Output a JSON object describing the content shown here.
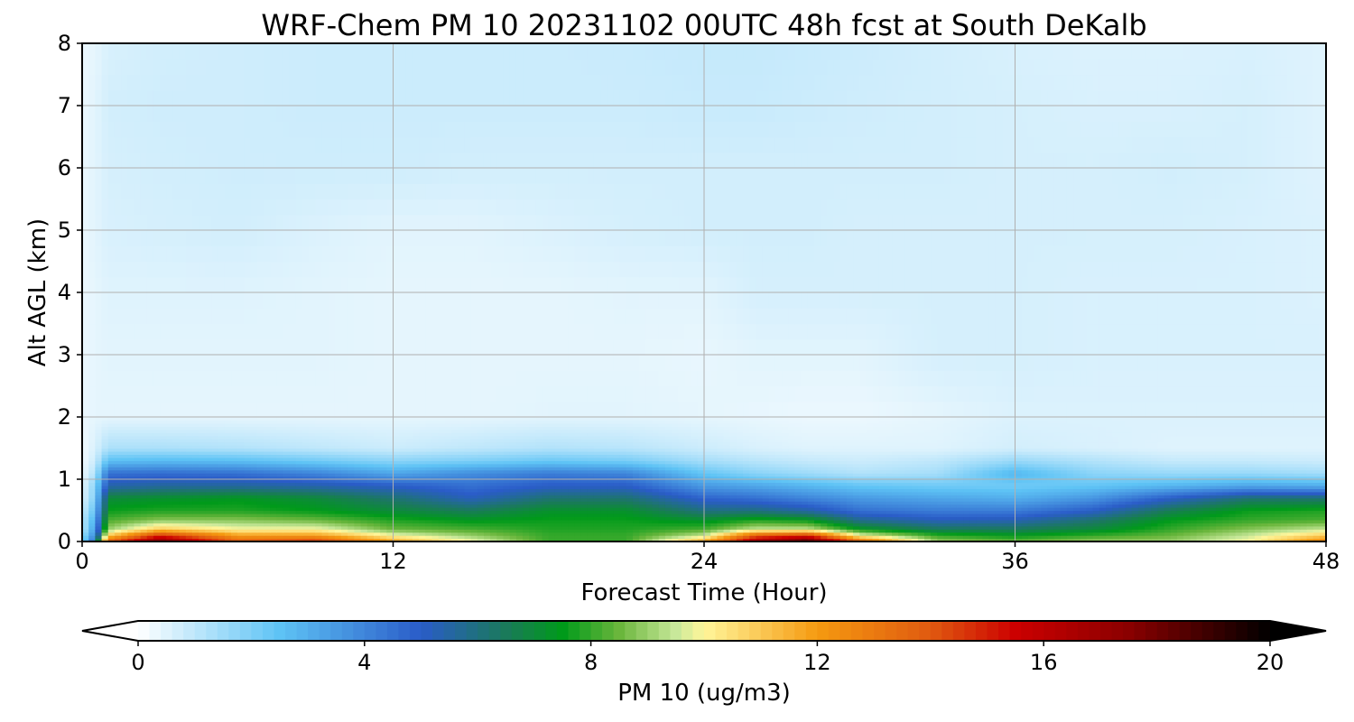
{
  "chart_data": {
    "type": "heatmap",
    "title": "WRF-Chem PM 10  20231102 00UTC 48h fcst at South DeKalb",
    "xlabel": "Forecast Time (Hour)",
    "ylabel": "Alt AGL (km)",
    "xlim": [
      0,
      48
    ],
    "ylim": [
      0,
      8
    ],
    "x_ticks": [
      0,
      12,
      24,
      36,
      48
    ],
    "y_ticks": [
      0,
      1,
      2,
      3,
      4,
      5,
      6,
      7,
      8
    ],
    "grid": true,
    "colorbar": {
      "label": "PM 10  (ug/m3)",
      "range": [
        0,
        20
      ],
      "ticks": [
        0,
        4,
        8,
        12,
        16,
        20
      ],
      "extend": "both",
      "orientation": "horizontal",
      "position": "bottom",
      "color_stops": [
        {
          "v": 0,
          "c": "#ffffff"
        },
        {
          "v": 2.5,
          "c": "#5ec3f5"
        },
        {
          "v": 5,
          "c": "#2a5cc8"
        },
        {
          "v": 6.5,
          "c": "#1a7a5a"
        },
        {
          "v": 7.5,
          "c": "#009a1a"
        },
        {
          "v": 8.5,
          "c": "#6ab63c"
        },
        {
          "v": 9.5,
          "c": "#c8e89a"
        },
        {
          "v": 10,
          "c": "#fff69a"
        },
        {
          "v": 12,
          "c": "#f59a10"
        },
        {
          "v": 14,
          "c": "#e05a10"
        },
        {
          "v": 15.5,
          "c": "#cc0000"
        },
        {
          "v": 17.5,
          "c": "#8a0000"
        },
        {
          "v": 20,
          "c": "#000000"
        }
      ]
    },
    "hours": [
      0,
      0.5,
      1,
      3,
      6,
      9,
      12,
      15,
      18,
      21,
      24,
      26,
      28,
      30,
      33,
      36,
      39,
      42,
      45,
      48
    ],
    "altitudes_km": [
      0,
      0.1,
      0.2,
      0.35,
      0.5,
      0.7,
      0.9,
      1.1,
      1.3,
      1.5,
      2,
      3,
      4,
      5,
      6,
      7,
      8
    ],
    "values": [
      [
        2,
        5,
        14,
        18,
        14,
        15,
        12,
        10,
        8,
        8,
        12,
        17,
        19,
        14,
        9,
        8.5,
        9,
        9,
        10,
        13
      ],
      [
        1.5,
        4,
        11,
        15,
        12,
        12,
        10,
        9,
        8,
        8,
        9.5,
        14,
        15,
        10,
        8,
        7.5,
        8,
        8.5,
        9.5,
        11
      ],
      [
        1,
        3.5,
        9,
        11,
        10,
        10,
        8.5,
        8.2,
        7.8,
        7.8,
        8.2,
        9.5,
        9.5,
        7.5,
        6.5,
        6.5,
        7,
        8,
        8.8,
        9.5
      ],
      [
        1,
        3,
        8.2,
        8.8,
        8.8,
        8.5,
        7.8,
        7.4,
        7.6,
        7.6,
        7.2,
        7.8,
        7.5,
        5.8,
        5.2,
        5.3,
        6.2,
        7.5,
        8,
        8.2
      ],
      [
        0.8,
        2.5,
        7.6,
        7.8,
        7.8,
        7.5,
        7,
        6.5,
        7.2,
        7.2,
        6,
        6,
        5.5,
        4.5,
        4.2,
        4.2,
        5,
        6.6,
        7.6,
        7.8
      ],
      [
        0.5,
        2,
        7,
        7.2,
        7.4,
        7,
        6.2,
        5.2,
        6.2,
        6.2,
        4.8,
        4.5,
        4,
        3.5,
        3.2,
        3,
        3.6,
        5,
        6.2,
        6.2
      ],
      [
        0.4,
        1.8,
        5.4,
        5.6,
        5.6,
        5.4,
        5,
        4.5,
        5,
        5,
        3.5,
        3.2,
        2.8,
        2.4,
        2.2,
        2.2,
        2.4,
        2.8,
        3.2,
        3
      ],
      [
        0.3,
        1.2,
        4.5,
        4.6,
        4.5,
        4,
        3.2,
        3.8,
        4.2,
        4,
        2.4,
        1.8,
        1.5,
        1.2,
        1.4,
        2.8,
        1.8,
        1.6,
        1.6,
        1.4
      ],
      [
        0.2,
        0.8,
        2.6,
        2.7,
        2.6,
        2.2,
        1.8,
        2,
        2.3,
        2.1,
        1.4,
        1.1,
        0.9,
        0.8,
        1,
        1.6,
        1.2,
        0.9,
        0.9,
        0.8
      ],
      [
        0.2,
        0.6,
        1.3,
        1.3,
        1.2,
        1,
        0.8,
        1,
        1.2,
        1.1,
        0.8,
        0.6,
        0.5,
        0.5,
        0.5,
        0.7,
        0.6,
        0.5,
        0.5,
        0.5
      ],
      [
        0.3,
        0.4,
        0.4,
        0.4,
        0.4,
        0.4,
        0.4,
        0.4,
        0.45,
        0.45,
        0.4,
        0.35,
        0.3,
        0.3,
        0.4,
        0.55,
        0.55,
        0.55,
        0.55,
        0.55
      ],
      [
        0.3,
        0.4,
        0.45,
        0.45,
        0.45,
        0.45,
        0.4,
        0.4,
        0.4,
        0.4,
        0.35,
        0.45,
        0.45,
        0.45,
        0.65,
        0.65,
        0.6,
        0.6,
        0.6,
        0.6
      ],
      [
        0.3,
        0.4,
        0.5,
        0.5,
        0.5,
        0.45,
        0.4,
        0.4,
        0.4,
        0.45,
        0.45,
        0.65,
        0.65,
        0.65,
        0.65,
        0.65,
        0.6,
        0.6,
        0.6,
        0.55
      ],
      [
        0.3,
        0.45,
        0.6,
        0.65,
        0.7,
        0.55,
        0.45,
        0.45,
        0.55,
        0.65,
        0.7,
        0.7,
        0.7,
        0.65,
        0.65,
        0.65,
        0.65,
        0.65,
        0.6,
        0.55
      ],
      [
        0.3,
        0.45,
        0.65,
        0.7,
        0.75,
        0.75,
        0.75,
        0.7,
        0.7,
        0.7,
        0.7,
        0.7,
        0.7,
        0.7,
        0.7,
        0.65,
        0.65,
        0.7,
        0.65,
        0.5
      ],
      [
        0.3,
        0.45,
        0.7,
        0.75,
        0.75,
        0.8,
        0.8,
        0.8,
        0.8,
        0.8,
        0.85,
        0.85,
        0.8,
        0.75,
        0.7,
        0.65,
        0.6,
        0.6,
        0.65,
        0.5
      ],
      [
        0.3,
        0.4,
        0.6,
        0.7,
        0.75,
        0.8,
        0.8,
        0.8,
        0.8,
        0.85,
        0.9,
        0.9,
        0.85,
        0.8,
        0.7,
        0.6,
        0.55,
        0.55,
        0.6,
        0.5
      ]
    ]
  }
}
